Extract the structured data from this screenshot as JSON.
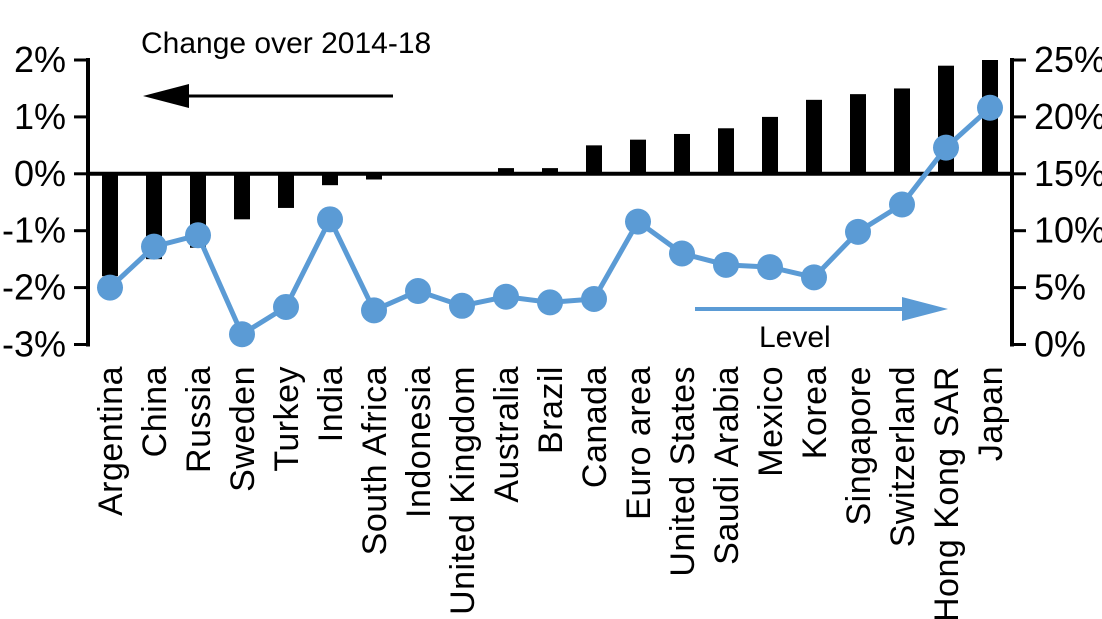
{
  "chart_data": {
    "type": "combo",
    "title": "",
    "categories": [
      "Argentina",
      "China",
      "Russia",
      "Sweden",
      "Turkey",
      "India",
      "South Africa",
      "Indonesia",
      "United Kingdom",
      "Australia",
      "Brazil",
      "Canada",
      "Euro area",
      "United States",
      "Saudi Arabia",
      "Mexico",
      "Korea",
      "Singapore",
      "Switzerland",
      "Hong Kong SAR",
      "Japan"
    ],
    "series": [
      {
        "name": "Change over 2014-18",
        "type": "bar",
        "axis": "left",
        "color": "#000000",
        "values": [
          -1.8,
          -1.5,
          -1.3,
          -0.8,
          -0.6,
          -0.2,
          -0.1,
          0.0,
          0.0,
          0.1,
          0.1,
          0.5,
          0.6,
          0.7,
          0.8,
          1.0,
          1.3,
          1.4,
          1.5,
          1.9,
          2.0
        ]
      },
      {
        "name": "Level",
        "type": "line",
        "axis": "right",
        "color": "#5B9BD5",
        "values": [
          5.0,
          8.6,
          9.6,
          0.9,
          3.3,
          11.0,
          3.0,
          4.7,
          3.4,
          4.2,
          3.7,
          4.0,
          10.8,
          8.0,
          7.0,
          6.8,
          5.9,
          9.9,
          12.3,
          17.3,
          20.8
        ]
      }
    ],
    "left_axis": {
      "min": -3,
      "max": 2,
      "tick_labels": [
        "2%",
        "1%",
        "0%",
        "-1%",
        "-2%",
        "-3%"
      ],
      "tick_values": [
        2,
        1,
        0,
        -1,
        -2,
        -3
      ]
    },
    "right_axis": {
      "min": 0,
      "max": 25,
      "tick_labels": [
        "25%",
        "20%",
        "15%",
        "10%",
        "5%",
        "0%"
      ],
      "tick_values": [
        25,
        20,
        15,
        10,
        5,
        0
      ]
    },
    "annotations": {
      "change_label": "Change over 2014-18",
      "level_label": "Level"
    },
    "grid": false,
    "legend_position": "none",
    "colors": {
      "bar": "#000000",
      "line": "#5B9BD5",
      "text": "#000000",
      "background": "#ffffff"
    }
  }
}
